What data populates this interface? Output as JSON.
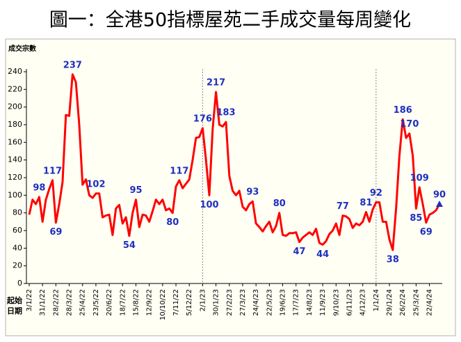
{
  "chart_data": {
    "type": "line",
    "title": "圖一：全港50指標屋苑二手成交量每周變化",
    "ylabel": "成交宗數",
    "xlabel": [
      "起始",
      "日期"
    ],
    "color": "#ff0000",
    "label_color": "#1f2fc0",
    "ylim": [
      0,
      240
    ],
    "yticks": [
      0,
      20,
      40,
      60,
      80,
      100,
      120,
      140,
      160,
      180,
      200,
      220,
      240
    ],
    "categories": [
      "3/1/22",
      null,
      null,
      null,
      "31/1/22",
      null,
      null,
      null,
      "28/2/22",
      null,
      null,
      null,
      "28/3/22",
      null,
      null,
      null,
      "25/4/22",
      null,
      null,
      null,
      "23/5/22",
      null,
      null,
      null,
      "20/6/22",
      null,
      null,
      null,
      "18/7/22",
      null,
      null,
      null,
      "15/8/22",
      null,
      null,
      null,
      "12/9/22",
      null,
      null,
      null,
      "10/10/22",
      null,
      null,
      null,
      "7/11/22",
      null,
      null,
      null,
      "5/12/22",
      null,
      null,
      null,
      "2/1/23",
      null,
      null,
      null,
      "30/1/23",
      null,
      null,
      null,
      "27/2/23",
      null,
      null,
      null,
      "27/3/23",
      null,
      null,
      null,
      "24/4/23",
      null,
      null,
      null,
      "22/5/23",
      null,
      null,
      null,
      "19/6/23",
      null,
      null,
      null,
      "17/7/23",
      null,
      null,
      null,
      "14/8/23",
      null,
      null,
      null,
      "11/9/23",
      null,
      null,
      null,
      "9/10/23",
      null,
      null,
      null,
      "6/11/23",
      null,
      null,
      null,
      "4/12/23",
      null,
      null,
      null,
      "1/1/24",
      null,
      null,
      null,
      "29/1/24",
      null,
      null,
      null,
      "26/2/24",
      null,
      null,
      null,
      "25/3/24",
      null,
      null,
      null,
      "22/4/24",
      null,
      null,
      null
    ],
    "values": [
      78,
      95,
      90,
      98,
      70,
      95,
      107,
      117,
      69,
      90,
      115,
      191,
      190,
      237,
      228,
      180,
      112,
      118,
      100,
      97,
      102,
      102,
      75,
      77,
      78,
      55,
      85,
      89,
      68,
      75,
      54,
      80,
      95,
      64,
      78,
      77,
      70,
      82,
      95,
      90,
      95,
      83,
      85,
      80,
      110,
      117,
      108,
      113,
      118,
      140,
      165,
      166,
      176,
      140,
      100,
      175,
      217,
      180,
      178,
      183,
      122,
      105,
      100,
      105,
      87,
      83,
      90,
      93,
      68,
      64,
      59,
      65,
      70,
      58,
      65,
      80,
      55,
      54,
      57,
      57,
      58,
      47,
      52,
      55,
      58,
      55,
      62,
      46,
      44,
      48,
      56,
      60,
      68,
      55,
      77,
      76,
      73,
      63,
      68,
      66,
      70,
      81,
      70,
      84,
      92,
      92,
      70,
      70,
      50,
      38,
      85,
      145,
      186,
      165,
      170,
      145,
      85,
      109,
      90,
      69,
      78,
      80,
      83,
      90
    ],
    "labeled_points": [
      3,
      7,
      8,
      13,
      20,
      30,
      32,
      43,
      45,
      52,
      54,
      56,
      59,
      67,
      75,
      81,
      88,
      94,
      101,
      104,
      109,
      112,
      114,
      116,
      117,
      119,
      123
    ]
  }
}
